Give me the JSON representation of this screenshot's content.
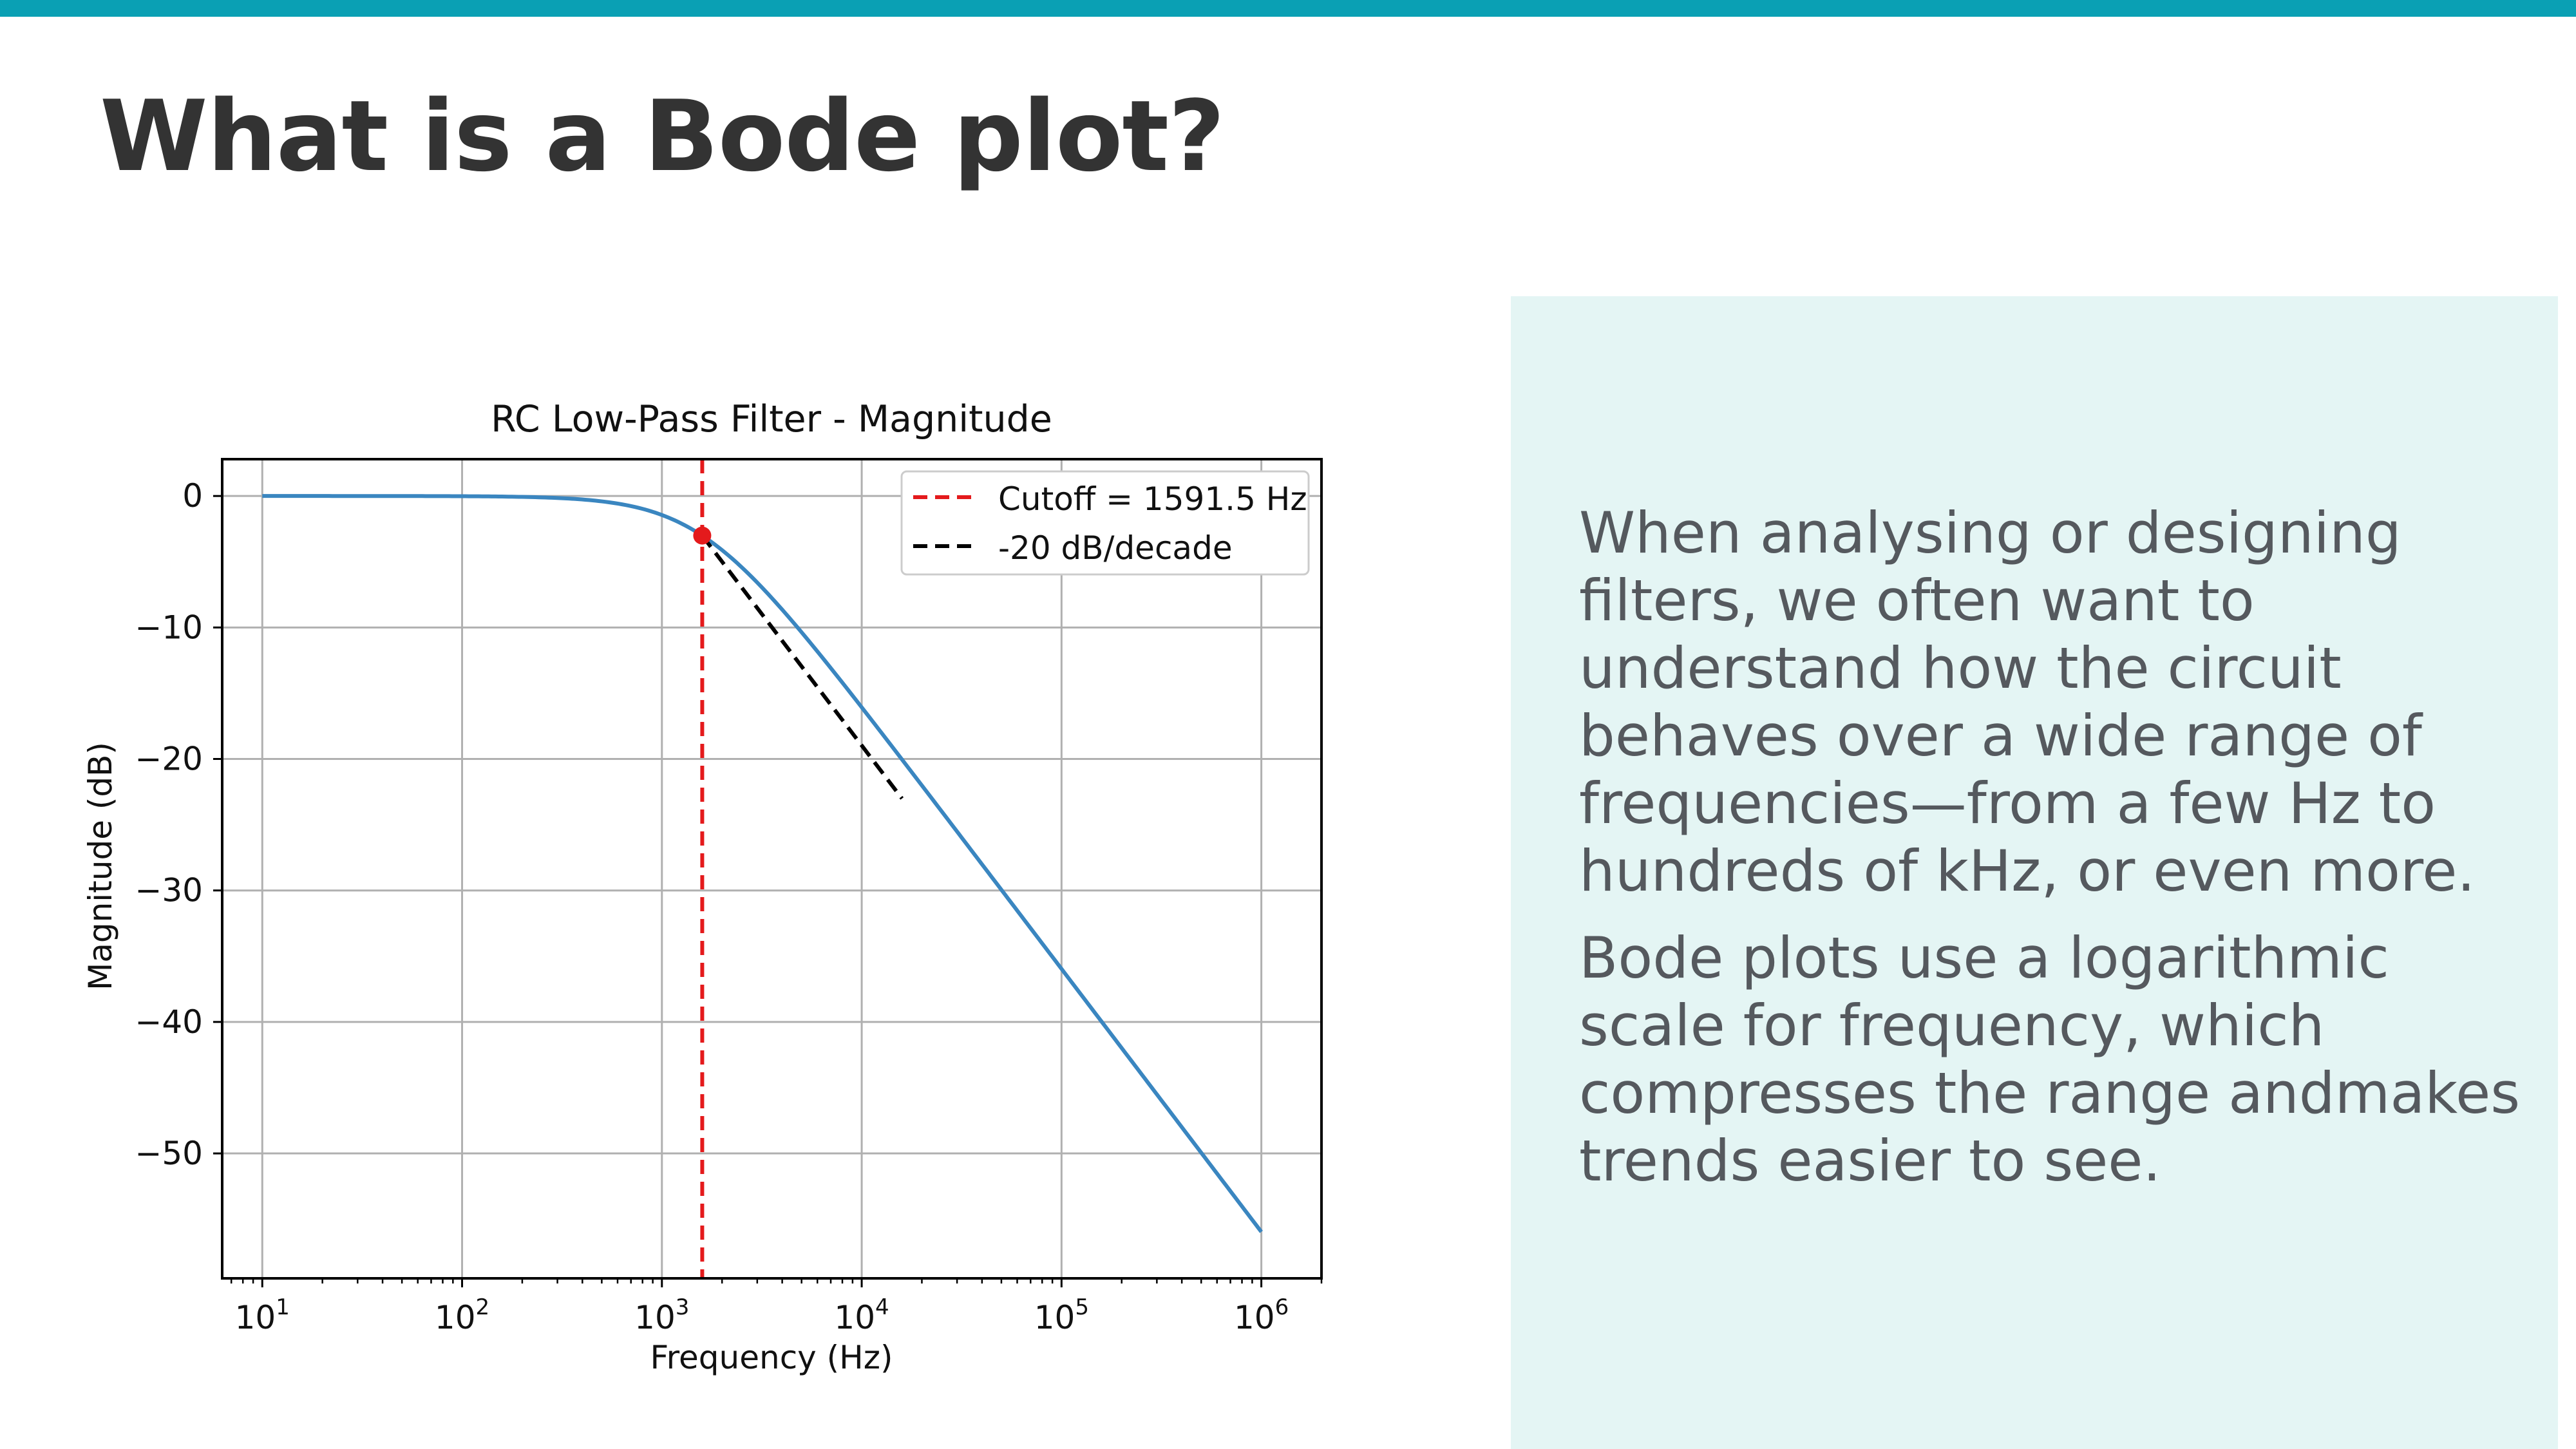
{
  "slide": {
    "title": "What is a Bode plot?",
    "accent_color": "#0aa0b4",
    "panel_color": "#e4f5f4",
    "paragraphs": [
      "When analysing or designing filters, we often want to understand how the circuit behaves over a wide range of frequencies—from a few Hz to hundreds of kHz, or even more.",
      "Bode plots use a logarithmic scale for frequency, which compresses the range andmakes trends easier to see."
    ]
  },
  "chart_data": {
    "type": "line",
    "title": "RC Low-Pass Filter - Magnitude",
    "xlabel": "Frequency (Hz)",
    "ylabel": "Magnitude (dB)",
    "x_scale": "log",
    "xlim": [
      6.3,
      2000000
    ],
    "ylim": [
      -59.5,
      2.8
    ],
    "x_ticks": [
      {
        "value": 10,
        "base": "10",
        "exp": "1"
      },
      {
        "value": 100,
        "base": "10",
        "exp": "2"
      },
      {
        "value": 1000,
        "base": "10",
        "exp": "3"
      },
      {
        "value": 10000,
        "base": "10",
        "exp": "4"
      },
      {
        "value": 100000,
        "base": "10",
        "exp": "5"
      },
      {
        "value": 1000000,
        "base": "10",
        "exp": "6"
      }
    ],
    "y_ticks": [
      {
        "value": 0,
        "label": "0"
      },
      {
        "value": -10,
        "label": "−10"
      },
      {
        "value": -20,
        "label": "−20"
      },
      {
        "value": -30,
        "label": "−30"
      },
      {
        "value": -40,
        "label": "−40"
      },
      {
        "value": -50,
        "label": "−50"
      }
    ],
    "grid": true,
    "legend_position": "top-right",
    "legend": [
      {
        "label": "Cutoff = 1591.5 Hz",
        "color": "#e41a1c",
        "style": "dashed"
      },
      {
        "label": "-20 dB/decade",
        "color": "#000000",
        "style": "dashed"
      }
    ],
    "cutoff_hz": 1591.5,
    "cutoff_db": -3.01,
    "curve_color": "#3a86c0",
    "curve_x_range": [
      10,
      1000000
    ],
    "slope_line": {
      "x": [
        1591.5,
        15915
      ],
      "y": [
        -3.01,
        -23.01
      ]
    },
    "series": [
      {
        "x": [
          10,
          20,
          50,
          100,
          200,
          500,
          800,
          1000,
          1200,
          1591.5,
          2000,
          3000,
          5000,
          10000,
          20000,
          50000,
          100000,
          200000,
          500000,
          1000000
        ],
        "y": [
          0.0,
          0.0,
          -0.004,
          -0.017,
          -0.07,
          -0.41,
          -0.97,
          -1.44,
          -1.94,
          -3.01,
          -4.09,
          -6.55,
          -10.37,
          -16.07,
          -22.0,
          -29.94,
          -35.97,
          -41.99,
          -49.95,
          -55.97
        ]
      }
    ]
  }
}
